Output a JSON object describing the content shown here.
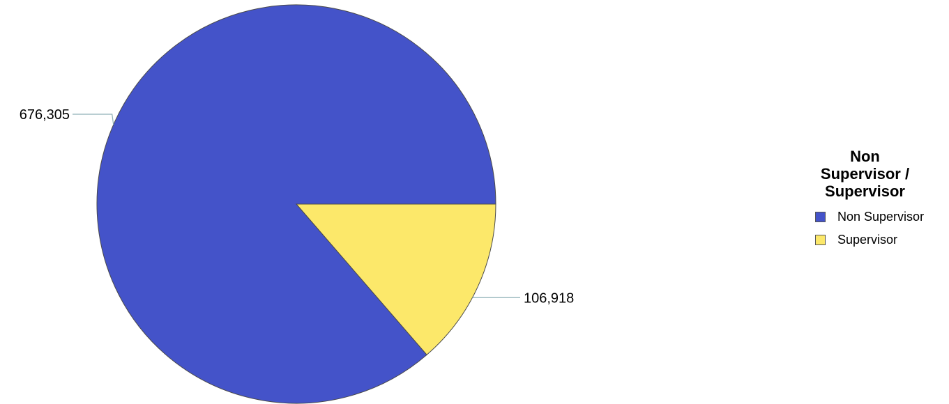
{
  "chart_data": {
    "type": "pie",
    "legend_title": "Non Supervisor / Supervisor",
    "legend_position": "right",
    "slices": [
      {
        "label": "Non Supervisor",
        "value": 676305,
        "value_label": "676,305",
        "color": "#4453c9"
      },
      {
        "label": "Supervisor",
        "value": 106918,
        "value_label": "106,918",
        "color": "#fce86a"
      }
    ]
  }
}
